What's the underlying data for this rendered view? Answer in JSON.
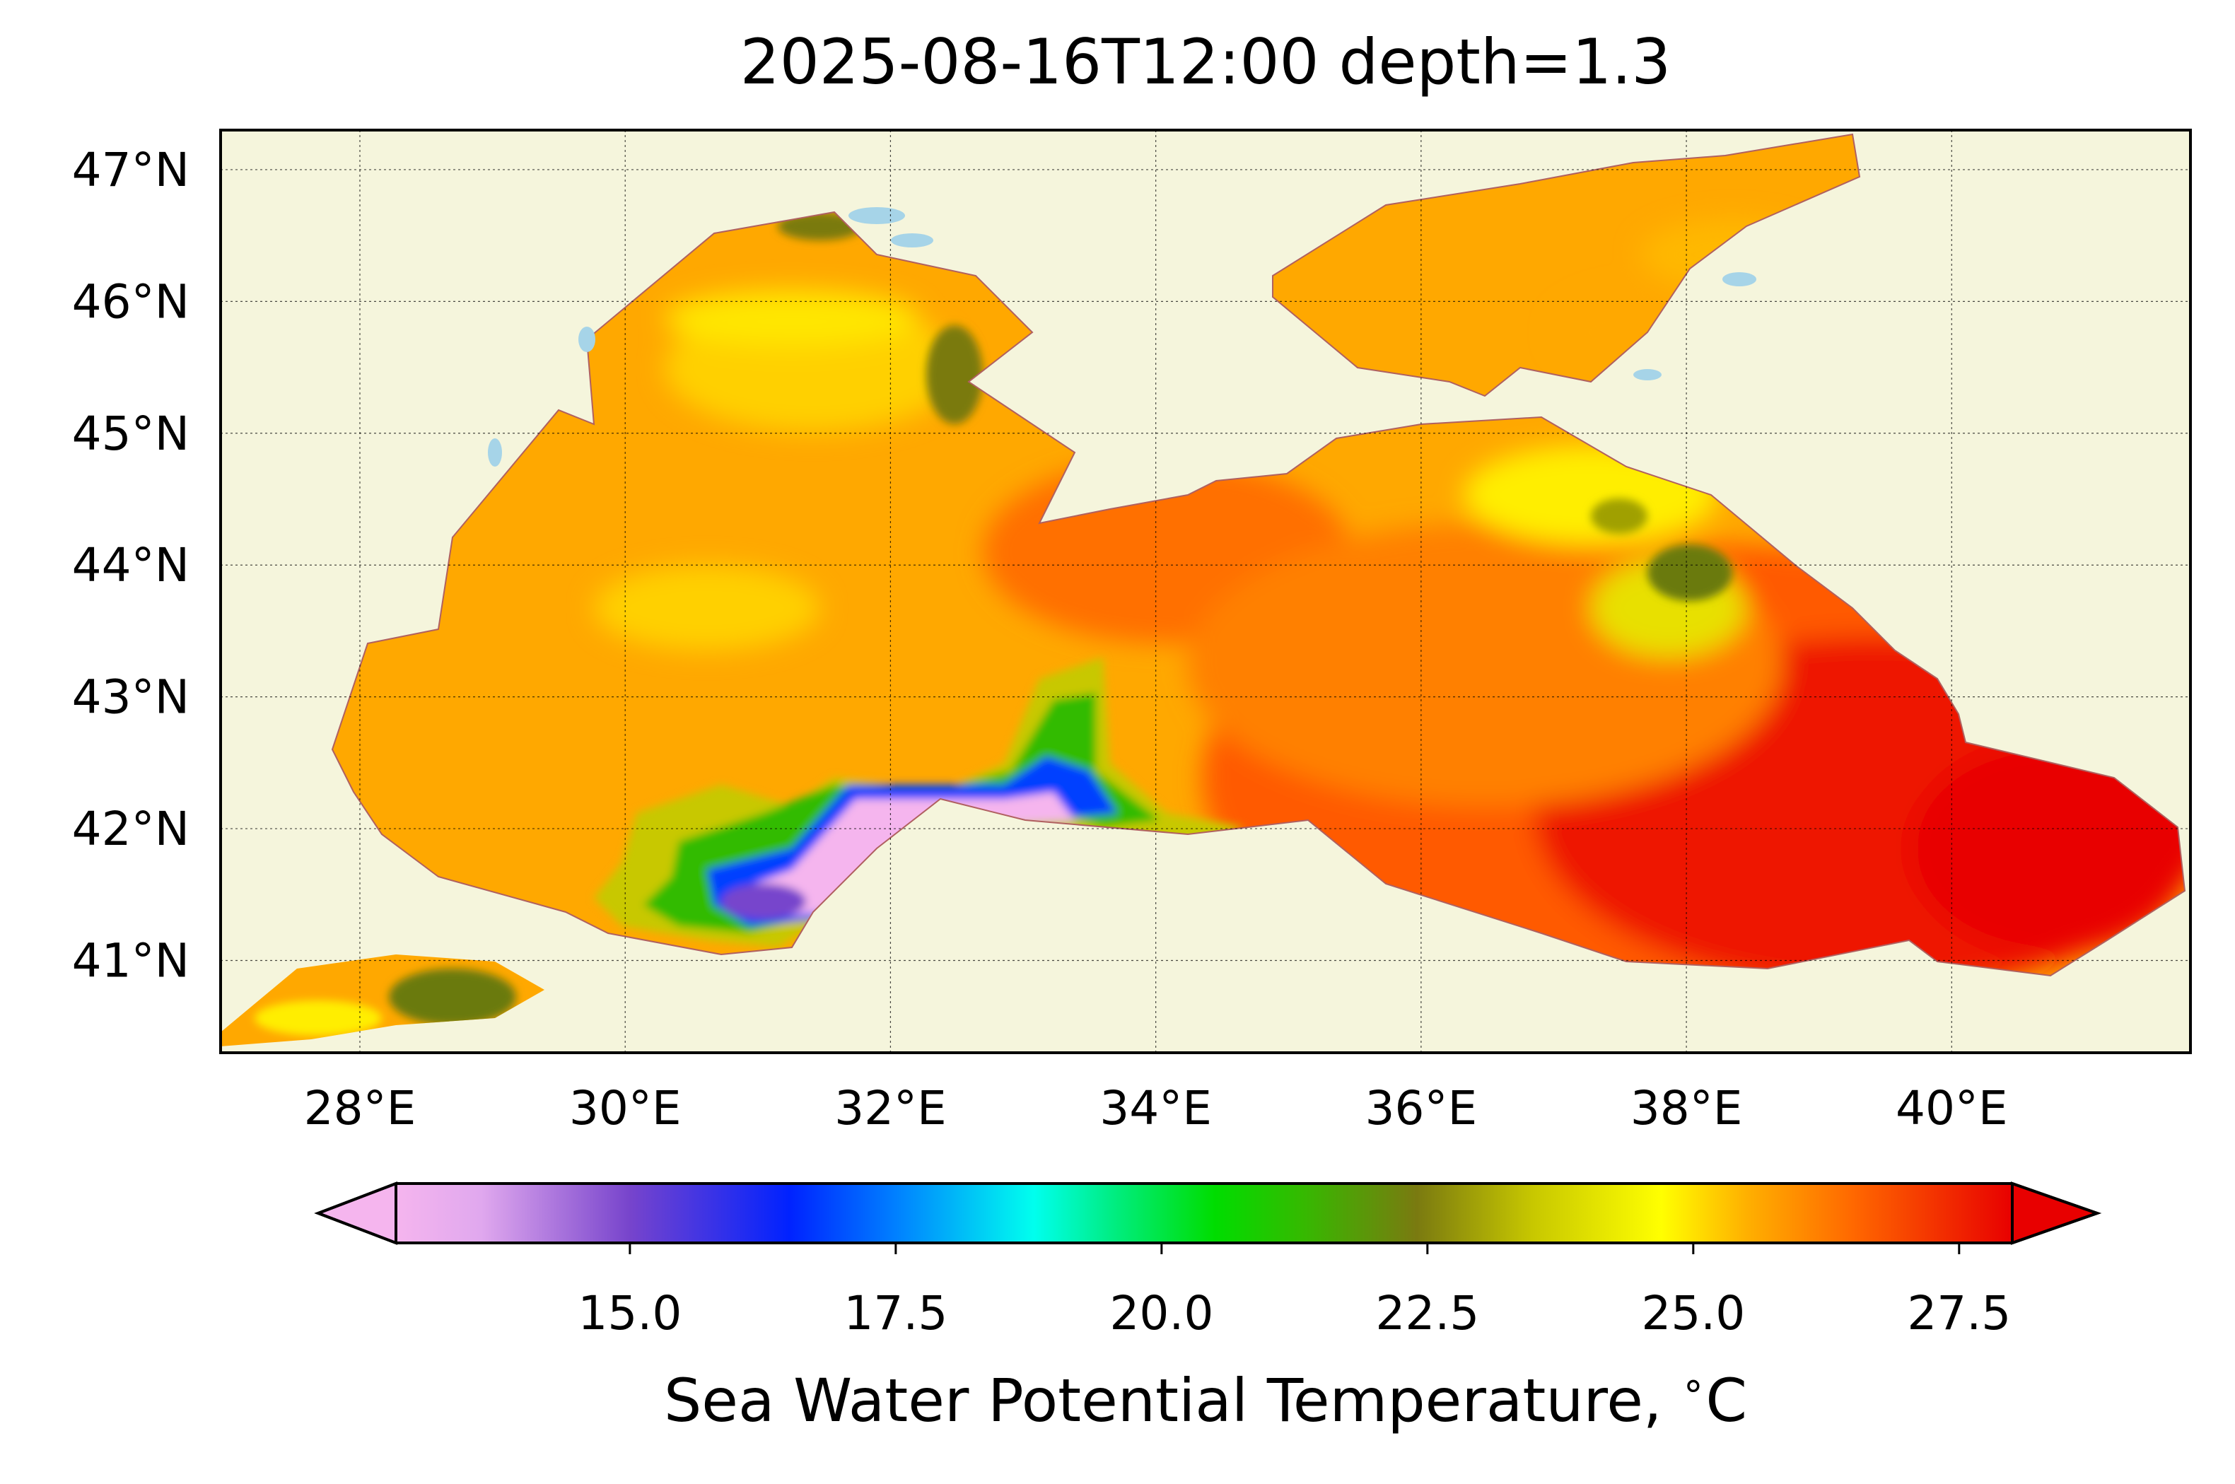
{
  "title": "2025-08-16T12:00 depth=1.3",
  "map": {
    "lon_range": [
      26.95,
      41.8
    ],
    "lat_range": [
      40.3,
      47.3
    ],
    "lon_ticks": [
      {
        "value": 28,
        "label": "28°E"
      },
      {
        "value": 30,
        "label": "30°E"
      },
      {
        "value": 32,
        "label": "32°E"
      },
      {
        "value": 34,
        "label": "34°E"
      },
      {
        "value": 36,
        "label": "36°E"
      },
      {
        "value": 38,
        "label": "38°E"
      },
      {
        "value": 40,
        "label": "40°E"
      }
    ],
    "lat_ticks": [
      {
        "value": 41,
        "label": "41°N"
      },
      {
        "value": 42,
        "label": "42°N"
      },
      {
        "value": 43,
        "label": "43°N"
      },
      {
        "value": 44,
        "label": "44°N"
      },
      {
        "value": 45,
        "label": "45°N"
      },
      {
        "value": 46,
        "label": "46°N"
      },
      {
        "value": 47,
        "label": "47°N"
      }
    ],
    "gridlines": true,
    "colors": {
      "land": "#f5f5dc",
      "lakes": "#a6d4e8",
      "coastline": "#b06060"
    }
  },
  "colorbar": {
    "label": "Sea Water Potential Temperature, $^\\circ$C",
    "label_display": "Sea Water Potential Temperature, ",
    "label_unit": "C",
    "range": [
      12.8,
      28.0
    ],
    "extend": "both",
    "ticks": [
      {
        "value": 15.0,
        "label": "15.0"
      },
      {
        "value": 17.5,
        "label": "17.5"
      },
      {
        "value": 20.0,
        "label": "20.0"
      },
      {
        "value": 22.5,
        "label": "22.5"
      },
      {
        "value": 25.0,
        "label": "25.0"
      },
      {
        "value": 27.5,
        "label": "27.5"
      }
    ],
    "stops": [
      {
        "value": 12.8,
        "color": "#f5b5ee"
      },
      {
        "value": 13.6,
        "color": "#e0a8ee"
      },
      {
        "value": 15.0,
        "color": "#7744cc"
      },
      {
        "value": 16.5,
        "color": "#0022ff"
      },
      {
        "value": 17.5,
        "color": "#0080ff"
      },
      {
        "value": 18.8,
        "color": "#00ffee"
      },
      {
        "value": 19.5,
        "color": "#00ee88"
      },
      {
        "value": 20.5,
        "color": "#00dd00"
      },
      {
        "value": 21.3,
        "color": "#33bb00"
      },
      {
        "value": 22.4,
        "color": "#7a7a10"
      },
      {
        "value": 23.5,
        "color": "#c8c800"
      },
      {
        "value": 24.7,
        "color": "#ffff00"
      },
      {
        "value": 25.5,
        "color": "#ffb000"
      },
      {
        "value": 26.5,
        "color": "#ff6800"
      },
      {
        "value": 28.0,
        "color": "#e80000"
      }
    ]
  }
}
